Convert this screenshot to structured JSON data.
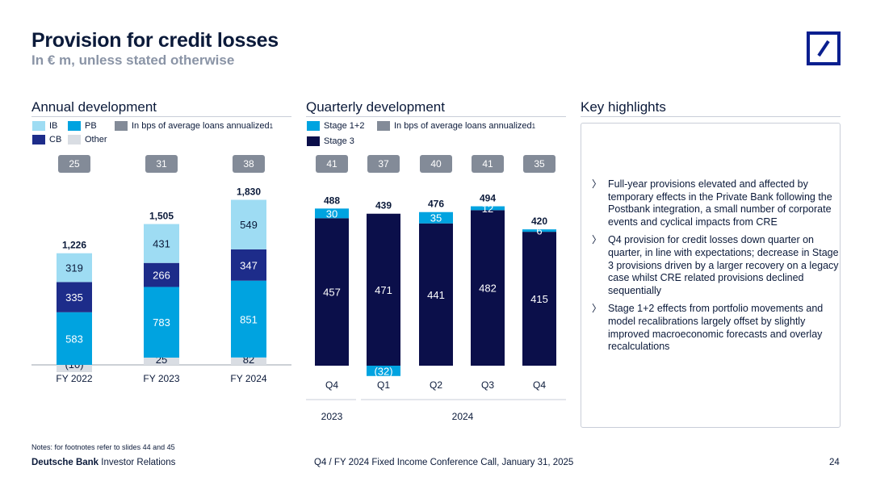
{
  "header": {
    "title": "Provision for credit losses",
    "subtitle": "In € m, unless stated otherwise"
  },
  "logo": {
    "name": "Deutsche Bank logo"
  },
  "colors": {
    "IB": "#9edcf3",
    "PB": "#00a3e0",
    "CB": "#1d2c8a",
    "Other": "#d9dde3",
    "Stage12": "#00a3e0",
    "Stage3": "#0b0f4a",
    "bps": "#838b98",
    "text": "#0b1a3a"
  },
  "annual": {
    "section_title": "Annual development",
    "legend": {
      "ib": "IB",
      "pb": "PB",
      "bps": "In bps of average loans annualized",
      "cb": "CB",
      "other": "Other",
      "footnote": "1"
    }
  },
  "quarterly": {
    "section_title": "Quarterly development",
    "legend": {
      "stage12": "Stage 1+2",
      "bps": "In bps of average loans annualized",
      "stage3": "Stage 3",
      "footnote": "1"
    }
  },
  "highlights": {
    "section_title": "Key highlights",
    "bullet_glyph": "〉",
    "items": [
      "Full-year provisions elevated and affected by temporary effects in the Private Bank following the Postbank integration, a small number of corporate events and cyclical impacts from CRE",
      "Q4 provision for credit losses down quarter on quarter, in line with expectations; decrease in Stage 3 provisions driven by a larger recovery on a legacy case whilst CRE related provisions declined sequentially",
      "Stage 1+2 effects from portfolio movements and model recalibrations largely offset by slightly improved macroeconomic forecasts and overlay recalculations"
    ]
  },
  "footer": {
    "notes": "Notes: for footnotes refer to slides 44 and 45",
    "brand_bold": "Deutsche Bank",
    "brand_rest": " Investor Relations",
    "center": "Q4 / FY 2024 Fixed Income Conference Call, January 31, 2025",
    "page": "24"
  },
  "chart_data": [
    {
      "type": "bar",
      "stacked": true,
      "title": "Annual development",
      "categories": [
        "FY 2022",
        "FY 2023",
        "FY 2024"
      ],
      "series": [
        {
          "name": "Other",
          "values": [
            -10,
            25,
            82
          ],
          "labels": [
            "(10)",
            "25",
            "82"
          ]
        },
        {
          "name": "PB",
          "values": [
            583,
            783,
            851
          ],
          "labels": [
            "583",
            "783",
            "851"
          ]
        },
        {
          "name": "CB",
          "values": [
            335,
            266,
            347
          ],
          "labels": [
            "335",
            "266",
            "347"
          ]
        },
        {
          "name": "IB",
          "values": [
            319,
            431,
            549
          ],
          "labels": [
            "319",
            "431",
            "549"
          ]
        }
      ],
      "totals": [
        "1,226",
        "1,505",
        "1,830"
      ],
      "bps": [
        "25",
        "31",
        "38"
      ],
      "ylim": [
        -40,
        1900
      ]
    },
    {
      "type": "bar",
      "stacked": true,
      "title": "Quarterly development",
      "categories": [
        "Q4",
        "Q1",
        "Q2",
        "Q3",
        "Q4"
      ],
      "year_groups": [
        {
          "label": "2023",
          "span": [
            0,
            0
          ]
        },
        {
          "label": "2024",
          "span": [
            1,
            4
          ]
        }
      ],
      "series": [
        {
          "name": "Stage 3",
          "values": [
            457,
            471,
            441,
            482,
            415
          ],
          "labels": [
            "457",
            "471",
            "441",
            "482",
            "415"
          ]
        },
        {
          "name": "Stage 1+2",
          "values": [
            30,
            -32,
            35,
            12,
            6
          ],
          "labels": [
            "30",
            "(32)",
            "35",
            "12",
            "6"
          ]
        }
      ],
      "totals": [
        "488",
        "439",
        "476",
        "494",
        "420"
      ],
      "bps": [
        "41",
        "37",
        "40",
        "41",
        "35"
      ],
      "ylim": [
        -40,
        510
      ]
    }
  ]
}
